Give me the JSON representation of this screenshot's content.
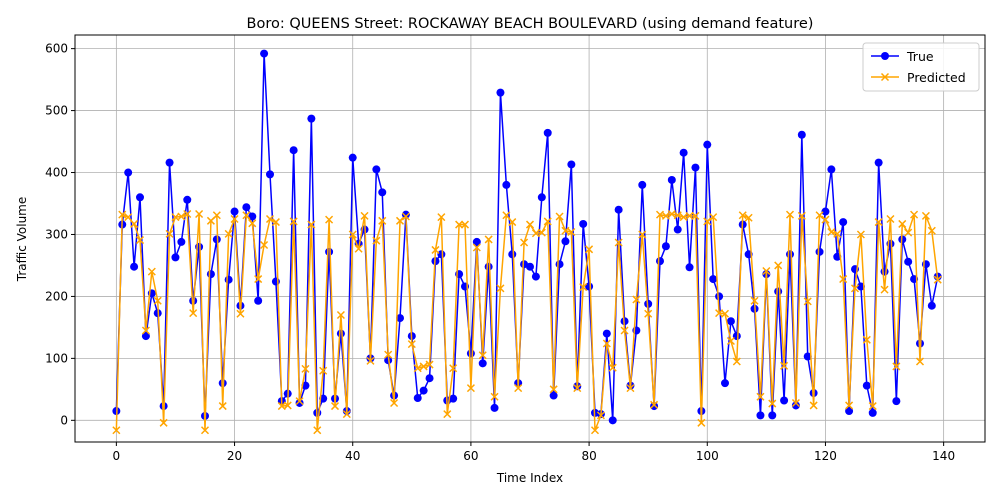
{
  "chart_data": {
    "type": "line",
    "title": "Boro: QUEENS Street: ROCKAWAY BEACH BOULEVARD (using demand feature)",
    "xlabel": "Time Index",
    "ylabel": "Traffic Volume",
    "xlim": [
      -7,
      147
    ],
    "ylim": [
      -35,
      622
    ],
    "xticks": [
      0,
      20,
      40,
      60,
      80,
      100,
      120,
      140
    ],
    "yticks": [
      0,
      100,
      200,
      300,
      400,
      500,
      600
    ],
    "grid": true,
    "legend_position": "top-right",
    "x_start": 0,
    "series": [
      {
        "name": "True",
        "color": "#0000ff",
        "marker": "circle",
        "values": [
          15,
          316,
          400,
          248,
          360,
          136,
          205,
          173,
          23,
          416,
          263,
          288,
          356,
          193,
          280,
          7,
          236,
          292,
          60,
          227,
          337,
          185,
          344,
          329,
          193,
          592,
          397,
          224,
          31,
          43,
          436,
          28,
          56,
          487,
          12,
          35,
          272,
          35,
          140,
          15,
          424,
          285,
          308,
          100,
          405,
          368,
          97,
          40,
          165,
          332,
          136,
          36,
          48,
          68,
          257,
          268,
          32,
          35,
          236,
          216,
          108,
          288,
          92,
          248,
          20,
          529,
          380,
          268,
          60,
          252,
          248,
          232,
          360,
          464,
          40,
          252,
          289,
          413,
          55,
          317,
          216,
          12,
          10,
          140,
          0,
          340,
          160,
          56,
          145,
          380,
          188,
          23,
          257,
          281,
          388,
          308,
          432,
          247,
          408,
          15,
          445,
          228,
          200,
          60,
          160,
          136,
          316,
          268,
          180,
          8,
          236,
          8,
          208,
          32,
          268,
          24,
          461,
          103,
          44,
          272,
          337,
          405,
          264,
          320,
          15,
          244,
          216,
          56,
          12,
          416,
          240,
          285,
          31,
          292,
          256,
          228,
          124,
          252,
          185,
          232
        ]
      },
      {
        "name": "Predicted",
        "color": "#ffa500",
        "marker": "x",
        "values": [
          -16,
          332,
          328,
          317,
          291,
          145,
          240,
          193,
          -4,
          301,
          328,
          329,
          333,
          173,
          333,
          -16,
          322,
          331,
          23,
          301,
          325,
          172,
          331,
          318,
          228,
          283,
          325,
          320,
          23,
          24,
          321,
          31,
          83,
          316,
          -16,
          80,
          324,
          23,
          170,
          10,
          300,
          277,
          330,
          96,
          290,
          322,
          106,
          28,
          322,
          329,
          123,
          84,
          87,
          90,
          275,
          328,
          10,
          84,
          316,
          316,
          52,
          279,
          105,
          292,
          38,
          213,
          331,
          320,
          52,
          287,
          316,
          302,
          303,
          321,
          50,
          329,
          306,
          304,
          52,
          215,
          276,
          -16,
          8,
          124,
          85,
          287,
          145,
          52,
          195,
          300,
          172,
          25,
          332,
          330,
          333,
          331,
          328,
          330,
          330,
          -4,
          321,
          328,
          173,
          172,
          128,
          95,
          331,
          327,
          193,
          38,
          241,
          27,
          250,
          88,
          332,
          28,
          330,
          192,
          24,
          331,
          324,
          304,
          301,
          228,
          24,
          213,
          300,
          130,
          23,
          320,
          211,
          325,
          87,
          317,
          303,
          332,
          95,
          330,
          306,
          227
        ]
      }
    ]
  }
}
